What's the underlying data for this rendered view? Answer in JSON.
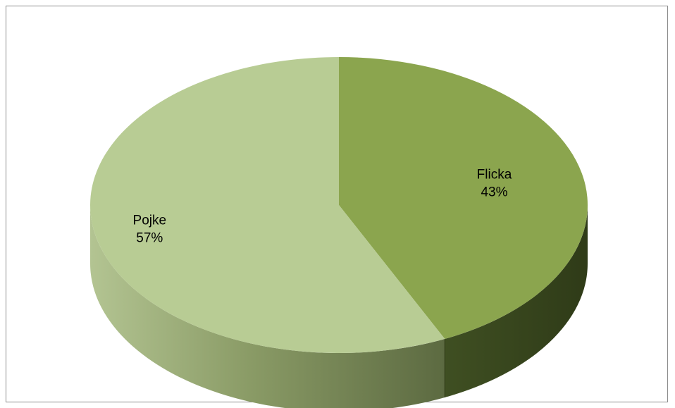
{
  "chart_data": {
    "type": "pie",
    "style": "3d",
    "title": "",
    "legend": "none",
    "slices": [
      {
        "label": "Flicka",
        "value": 43,
        "value_label": "43%",
        "color": "#8BA54E"
      },
      {
        "label": "Pojke",
        "value": 57,
        "value_label": "57%",
        "color": "#B8CC94"
      }
    ]
  }
}
